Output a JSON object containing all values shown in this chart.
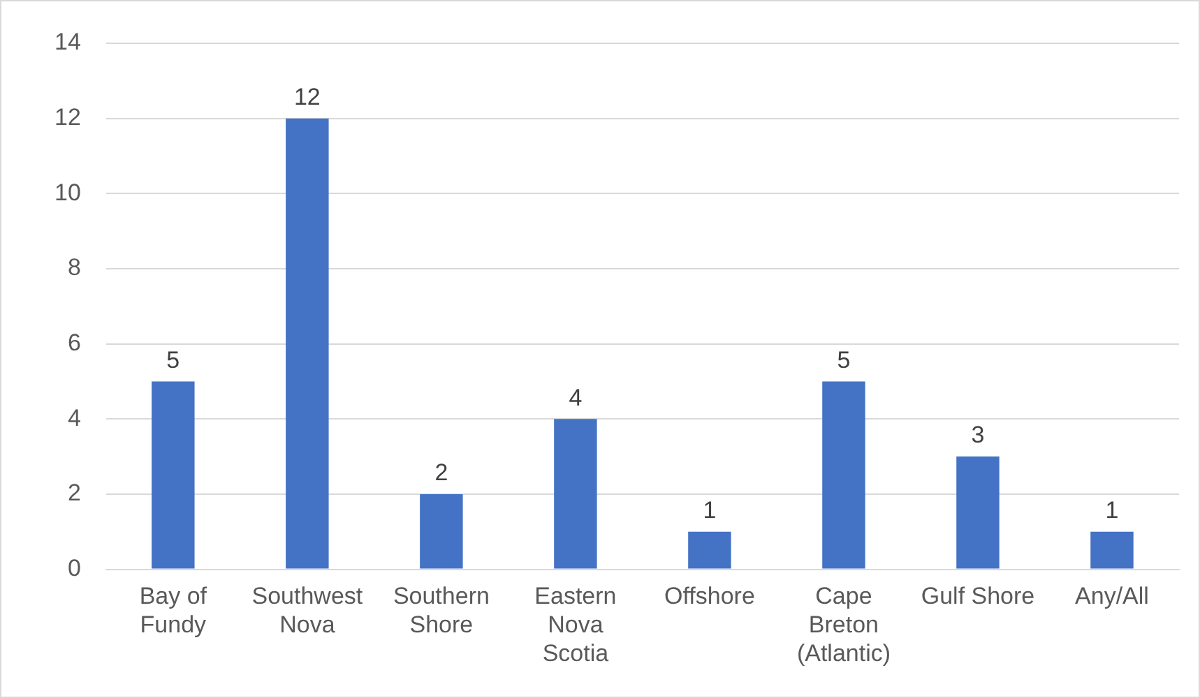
{
  "chart_data": {
    "type": "bar",
    "categories": [
      "Bay of Fundy",
      "Southwest Nova",
      "Southern Shore",
      "Eastern Nova Scotia",
      "Offshore",
      "Cape Breton (Atlantic)",
      "Gulf Shore",
      "Any/All"
    ],
    "values": [
      5,
      12,
      2,
      4,
      1,
      5,
      3,
      1
    ],
    "color": "#4472c4",
    "ylim": [
      0,
      14
    ],
    "yticks": [
      0,
      2,
      4,
      6,
      8,
      10,
      12,
      14
    ],
    "grid": "y",
    "legend": false,
    "data_labels": true
  }
}
